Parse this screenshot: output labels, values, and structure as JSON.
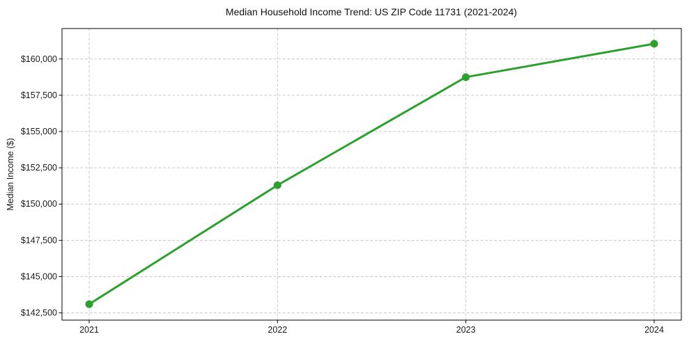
{
  "chart_data": {
    "type": "line",
    "title": "Median Household Income Trend: US ZIP Code 11731 (2021-2024)",
    "xlabel": "",
    "ylabel": "Median Income ($)",
    "categories": [
      "2021",
      "2022",
      "2023",
      "2024"
    ],
    "values": [
      143100,
      151300,
      158750,
      161050
    ],
    "ylim": [
      142000,
      162100
    ],
    "yticks": [
      142500,
      145000,
      147500,
      150000,
      152500,
      155000,
      157500,
      160000
    ],
    "ytick_labels": [
      "$142,500",
      "$145,000",
      "$147,500",
      "$150,000",
      "$152,500",
      "$155,000",
      "$157,500",
      "$160,000"
    ],
    "xtick_labels": [
      "2021",
      "2022",
      "2023",
      "2024"
    ],
    "grid": true,
    "legend": "none",
    "marker": "circle"
  },
  "colors": {
    "line": "#2ca02c",
    "marker": "#2ca02c",
    "grid": "#c8c8c8",
    "axis": "#000000",
    "text": "#1a1a1a",
    "background": "#ffffff"
  }
}
